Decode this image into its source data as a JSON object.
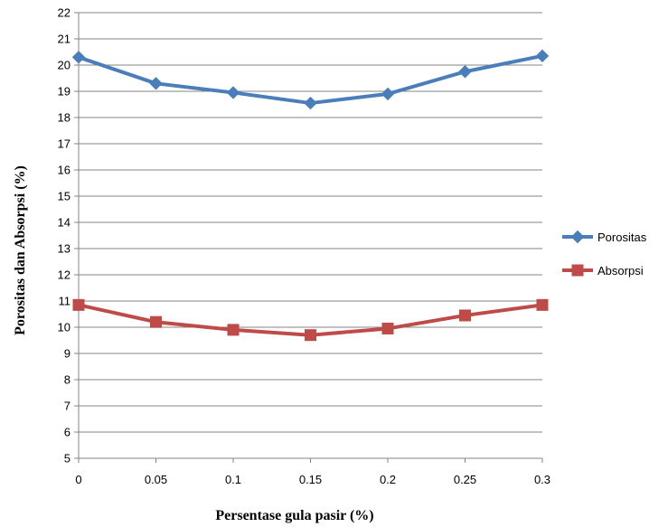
{
  "chart_data": {
    "type": "line",
    "title": "",
    "xlabel": "Persentase gula pasir (%)",
    "ylabel": "Porositas dan Absorpsi (%)",
    "x": [
      0,
      0.05,
      0.1,
      0.15,
      0.2,
      0.25,
      0.3
    ],
    "x_tick_labels": [
      "0",
      "0.05",
      "0.1",
      "0.15",
      "0.2",
      "0.25",
      "0.3"
    ],
    "ylim": [
      5,
      22
    ],
    "y_ticks": [
      "5",
      "6",
      "7",
      "8",
      "9",
      "10",
      "11",
      "12",
      "13",
      "14",
      "15",
      "16",
      "17",
      "18",
      "19",
      "20",
      "21",
      "22"
    ],
    "grid": "horizontal",
    "legend_position": "right",
    "series": [
      {
        "name": "Porositas",
        "color": "#4A7EBB",
        "marker": "diamond",
        "values": [
          20.3,
          19.3,
          18.95,
          18.55,
          18.9,
          19.75,
          20.35
        ]
      },
      {
        "name": "Absorpsi",
        "color": "#BE4B48",
        "marker": "square",
        "values": [
          10.85,
          10.2,
          9.9,
          9.7,
          9.95,
          10.45,
          10.85
        ]
      }
    ]
  }
}
